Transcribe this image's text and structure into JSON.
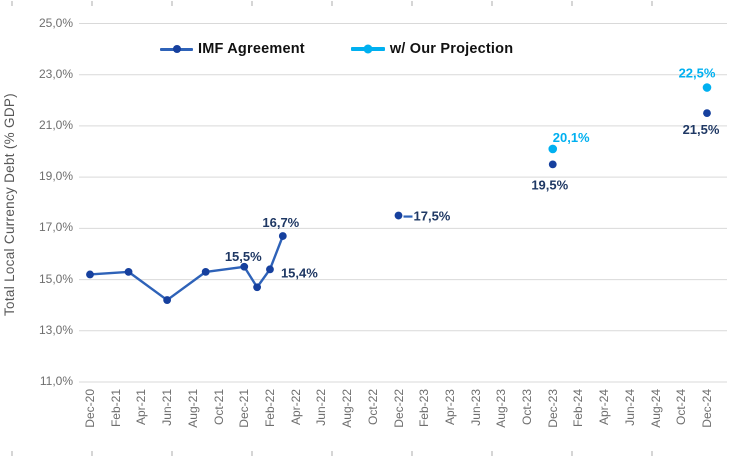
{
  "chart": {
    "ylabel": "Total Local Currency Debt (% GDP)",
    "legend": [
      {
        "label": "IMF Agreement"
      },
      {
        "label": "w/ Our Projection"
      }
    ]
  },
  "colors": {
    "imf_line": "#2E62B8",
    "imf_marker": "#16409E",
    "imf_label": "#1F3864",
    "projection": "#00B0F0",
    "projection_label": "#00B0F0",
    "grid": "#D9D9D9",
    "axis_text": "#6E6E6E",
    "edge_tick": "#D6D6D6"
  },
  "chart_data": {
    "type": "line",
    "title": "",
    "xlabel": "",
    "ylabel": "Total Local Currency Debt (% GDP)",
    "ylim": [
      11,
      25
    ],
    "grid": "horizontal",
    "legend_position": "top",
    "y_ticks": [
      {
        "value": 25,
        "label": "25,0%"
      },
      {
        "value": 23,
        "label": "23,0%"
      },
      {
        "value": 21,
        "label": "21,0%"
      },
      {
        "value": 19,
        "label": "19,0%"
      },
      {
        "value": 17,
        "label": "17,0%"
      },
      {
        "value": 15,
        "label": "15,0%"
      },
      {
        "value": 13,
        "label": "13,0%"
      },
      {
        "value": 11,
        "label": "11,0%"
      }
    ],
    "x_tick_labels": [
      "Dec-20",
      "Feb-21",
      "Apr-21",
      "Jun-21",
      "Aug-21",
      "Oct-21",
      "Dec-21",
      "Feb-22",
      "Apr-22",
      "Jun-22",
      "Aug-22",
      "Oct-22",
      "Dec-22",
      "Feb-23",
      "Apr-23",
      "Jun-23",
      "Aug-23",
      "Oct-23",
      "Dec-23",
      "Feb-24",
      "Apr-24",
      "Jun-24",
      "Aug-24",
      "Oct-24",
      "Dec-24"
    ],
    "series": [
      {
        "name": "IMF Agreement",
        "segments": [
          [
            0,
            7
          ]
        ],
        "points": [
          {
            "x": "Dec-20",
            "m": 0,
            "v": 15.2
          },
          {
            "x": "Mar-21",
            "m": 3,
            "v": 15.3
          },
          {
            "x": "Jun-21",
            "m": 6,
            "v": 14.2
          },
          {
            "x": "Sep-21",
            "m": 9,
            "v": 15.3
          },
          {
            "x": "Dec-21",
            "m": 12,
            "v": 15.5,
            "label": "15,5%",
            "ldx": -1,
            "ldy": -6,
            "lanchor": "middle"
          },
          {
            "x": "Jan-22",
            "m": 13,
            "v": 14.7
          },
          {
            "x": "Feb-22",
            "m": 14,
            "v": 15.4,
            "label": "15,4%",
            "ldx": 11,
            "ldy": 8,
            "lanchor": "start"
          },
          {
            "x": "Mar-22",
            "m": 15,
            "v": 16.7,
            "label": "16,7%",
            "ldx": -2,
            "ldy": -9,
            "lanchor": "middle"
          },
          {
            "x": "Dec-22",
            "m": 24,
            "v": 17.5,
            "label": "17,5%",
            "ldx": 15,
            "ldy": 5,
            "lanchor": "start",
            "leader_stub": true
          },
          {
            "x": "Dec-23",
            "m": 36,
            "v": 19.5,
            "label": "19,5%",
            "ldx": -3,
            "ldy": 25,
            "lanchor": "middle"
          },
          {
            "x": "Dec-24",
            "m": 48,
            "v": 21.5,
            "label": "21,5%",
            "ldx": -6,
            "ldy": 21,
            "lanchor": "middle"
          }
        ]
      },
      {
        "name": "w/ Our Projection",
        "segments": [],
        "points": [
          {
            "x": "Dec-23",
            "m": 36,
            "v": 20.1,
            "label": "20,1%",
            "ldx": 0,
            "ldy": -7,
            "lanchor": "start"
          },
          {
            "x": "Dec-24",
            "m": 48,
            "v": 22.5,
            "label": "22,5%",
            "ldx": -10,
            "ldy": -10,
            "lanchor": "middle"
          }
        ]
      }
    ]
  }
}
